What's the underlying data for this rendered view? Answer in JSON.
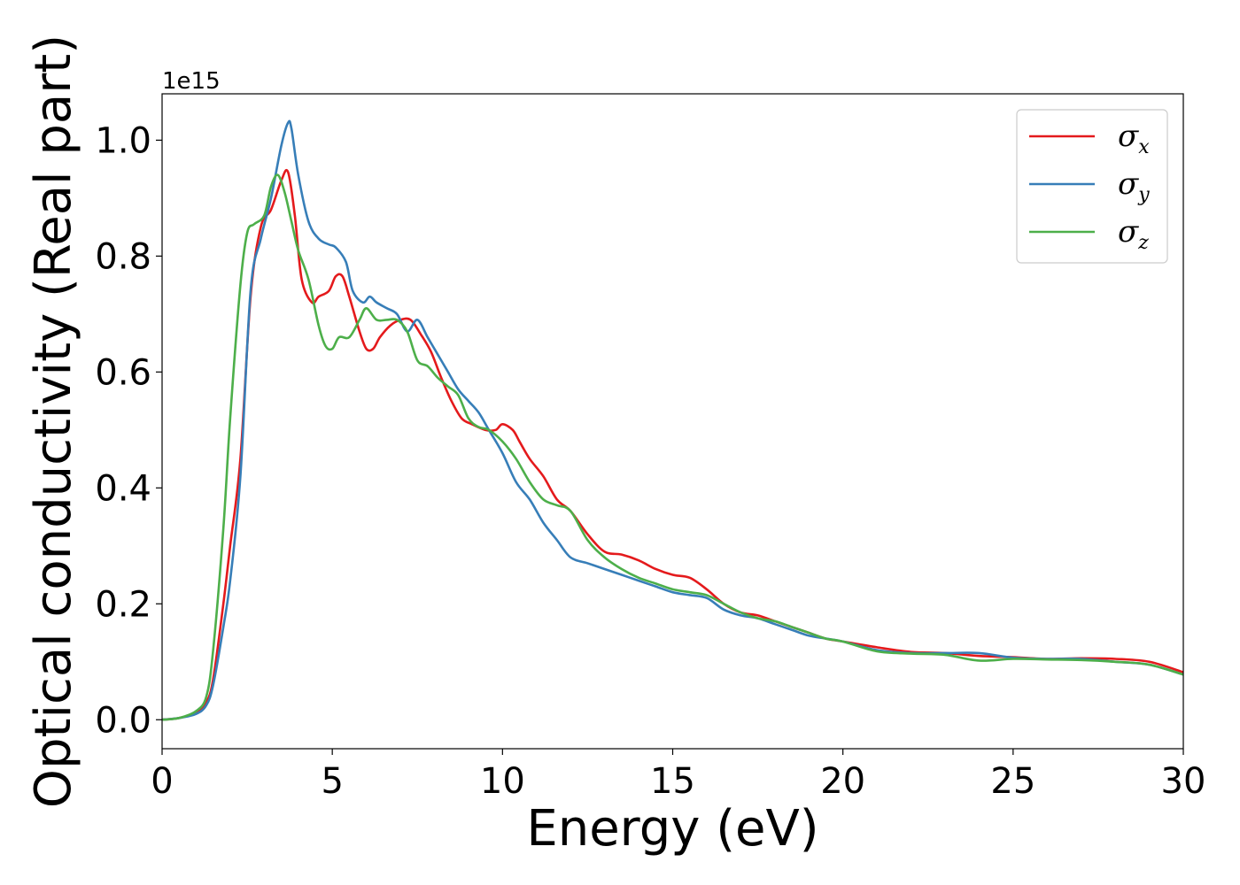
{
  "chart_data": {
    "type": "line",
    "xlabel": "Energy (eV)",
    "ylabel": "Optical conductivity (Real part)",
    "y_offset_text": "1e15",
    "xlim": [
      0,
      30
    ],
    "ylim": [
      -0.05,
      1.08
    ],
    "xticks": [
      0,
      5,
      10,
      15,
      20,
      25,
      30
    ],
    "xtick_labels": [
      "0",
      "5",
      "10",
      "15",
      "20",
      "25",
      "30"
    ],
    "yticks": [
      0.0,
      0.2,
      0.4,
      0.6,
      0.8,
      1.0
    ],
    "ytick_labels": [
      "0.0",
      "0.2",
      "0.4",
      "0.6",
      "0.8",
      "1.0"
    ],
    "grid": false,
    "legend_position": "top-right",
    "series": [
      {
        "name": "σ",
        "sub": "x",
        "color": "#e41a1c",
        "x": [
          0,
          0.5,
          1.0,
          1.3,
          1.5,
          1.8,
          2.0,
          2.3,
          2.6,
          2.9,
          3.2,
          3.5,
          3.7,
          3.9,
          4.1,
          4.4,
          4.6,
          4.9,
          5.1,
          5.3,
          5.5,
          5.8,
          6.0,
          6.2,
          6.4,
          6.7,
          7.0,
          7.3,
          7.6,
          7.9,
          8.2,
          8.5,
          8.8,
          9.1,
          9.5,
          9.8,
          10.0,
          10.3,
          10.5,
          10.8,
          11.2,
          11.6,
          12.0,
          12.5,
          13.0,
          13.5,
          14.0,
          14.5,
          15.0,
          15.5,
          16.0,
          16.5,
          17.0,
          17.5,
          18.0,
          18.5,
          19.0,
          19.5,
          20.0,
          21.0,
          22.0,
          23.0,
          24.0,
          25.0,
          26.0,
          27.0,
          28.0,
          29.0,
          30.0
        ],
        "y": [
          0,
          0.003,
          0.012,
          0.03,
          0.07,
          0.2,
          0.3,
          0.45,
          0.73,
          0.85,
          0.88,
          0.93,
          0.945,
          0.87,
          0.76,
          0.72,
          0.73,
          0.74,
          0.765,
          0.765,
          0.73,
          0.67,
          0.64,
          0.64,
          0.66,
          0.68,
          0.69,
          0.69,
          0.665,
          0.635,
          0.59,
          0.55,
          0.52,
          0.51,
          0.5,
          0.5,
          0.51,
          0.5,
          0.48,
          0.45,
          0.42,
          0.38,
          0.36,
          0.32,
          0.29,
          0.285,
          0.275,
          0.26,
          0.25,
          0.245,
          0.225,
          0.2,
          0.185,
          0.18,
          0.17,
          0.16,
          0.15,
          0.14,
          0.135,
          0.125,
          0.117,
          0.115,
          0.11,
          0.108,
          0.105,
          0.106,
          0.105,
          0.1,
          0.082
        ]
      },
      {
        "name": "σ",
        "sub": "y",
        "color": "#377eb8",
        "x": [
          0,
          0.5,
          1.0,
          1.3,
          1.5,
          1.8,
          2.0,
          2.3,
          2.6,
          2.9,
          3.2,
          3.5,
          3.7,
          3.8,
          4.0,
          4.3,
          4.6,
          4.9,
          5.1,
          5.4,
          5.6,
          5.9,
          6.1,
          6.3,
          6.6,
          6.9,
          7.2,
          7.5,
          7.8,
          8.1,
          8.4,
          8.7,
          9.0,
          9.3,
          9.6,
          10.0,
          10.4,
          10.8,
          11.2,
          11.6,
          12.0,
          12.5,
          13.0,
          13.5,
          14.0,
          14.5,
          15.0,
          15.5,
          16.0,
          16.5,
          17.0,
          17.5,
          18.0,
          18.5,
          19.0,
          19.5,
          20.0,
          21.0,
          22.0,
          23.0,
          24.0,
          25.0,
          26.0,
          27.0,
          28.0,
          29.0,
          30.0
        ],
        "y": [
          0,
          0.003,
          0.01,
          0.025,
          0.06,
          0.16,
          0.24,
          0.42,
          0.74,
          0.83,
          0.9,
          0.99,
          1.03,
          1.02,
          0.94,
          0.86,
          0.83,
          0.82,
          0.815,
          0.79,
          0.74,
          0.72,
          0.73,
          0.72,
          0.71,
          0.7,
          0.67,
          0.69,
          0.66,
          0.63,
          0.6,
          0.57,
          0.55,
          0.53,
          0.5,
          0.46,
          0.41,
          0.38,
          0.34,
          0.31,
          0.28,
          0.27,
          0.26,
          0.25,
          0.24,
          0.23,
          0.22,
          0.215,
          0.21,
          0.19,
          0.18,
          0.175,
          0.165,
          0.155,
          0.145,
          0.14,
          0.135,
          0.12,
          0.115,
          0.115,
          0.115,
          0.107,
          0.105,
          0.105,
          0.1,
          0.095,
          0.078
        ]
      },
      {
        "name": "σ",
        "sub": "z",
        "color": "#4daf4a",
        "x": [
          0,
          0.5,
          1.0,
          1.3,
          1.5,
          1.8,
          2.0,
          2.3,
          2.5,
          2.7,
          3.0,
          3.2,
          3.4,
          3.6,
          3.8,
          4.0,
          4.3,
          4.6,
          4.8,
          5.0,
          5.2,
          5.5,
          5.8,
          6.0,
          6.3,
          6.6,
          6.9,
          7.2,
          7.5,
          7.8,
          8.1,
          8.4,
          8.7,
          9.0,
          9.3,
          9.6,
          10.0,
          10.4,
          10.8,
          11.2,
          11.6,
          12.0,
          12.5,
          13.0,
          13.5,
          14.0,
          14.5,
          15.0,
          15.5,
          16.0,
          16.5,
          17.0,
          17.5,
          18.0,
          18.5,
          19.0,
          19.5,
          20.0,
          21.0,
          22.0,
          23.0,
          24.0,
          25.0,
          26.0,
          27.0,
          28.0,
          29.0,
          30.0
        ],
        "y": [
          0,
          0.003,
          0.015,
          0.04,
          0.12,
          0.33,
          0.52,
          0.75,
          0.84,
          0.855,
          0.87,
          0.92,
          0.94,
          0.91,
          0.86,
          0.81,
          0.76,
          0.68,
          0.645,
          0.64,
          0.66,
          0.66,
          0.69,
          0.71,
          0.69,
          0.69,
          0.69,
          0.67,
          0.62,
          0.61,
          0.59,
          0.575,
          0.56,
          0.52,
          0.505,
          0.5,
          0.48,
          0.45,
          0.41,
          0.38,
          0.37,
          0.36,
          0.31,
          0.28,
          0.26,
          0.245,
          0.235,
          0.225,
          0.22,
          0.215,
          0.2,
          0.185,
          0.175,
          0.17,
          0.16,
          0.15,
          0.14,
          0.135,
          0.118,
          0.114,
          0.112,
          0.102,
          0.105,
          0.104,
          0.103,
          0.1,
          0.095,
          0.078
        ]
      }
    ]
  }
}
